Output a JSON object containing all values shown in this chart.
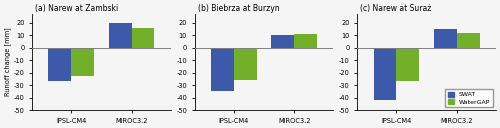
{
  "panels": [
    {
      "title": "(a) Narew at Zambski",
      "groups": [
        "IPSL-CM4",
        "MIROC3.2"
      ],
      "swat": [
        -27,
        20
      ],
      "watergap": [
        -23,
        16
      ]
    },
    {
      "title": "(b) Biebrza at Burzyn",
      "groups": [
        "IPSL-CM4",
        "MIROC3.2"
      ],
      "swat": [
        -35,
        10
      ],
      "watergap": [
        -26,
        11
      ]
    },
    {
      "title": "(c) Narew at Suraż",
      "groups": [
        "IPSL-CM4",
        "MIROC3.2"
      ],
      "swat": [
        -42,
        15
      ],
      "watergap": [
        -27,
        12
      ]
    }
  ],
  "ylabel": "Runoff change [mm]",
  "ylim": [
    -50,
    27
  ],
  "yticks": [
    -50,
    -40,
    -30,
    -20,
    -10,
    0,
    10,
    20
  ],
  "color_swat": "#3d5aaa",
  "color_watergap": "#72b02a",
  "bar_width": 0.38,
  "background_color": "#f5f5f5"
}
